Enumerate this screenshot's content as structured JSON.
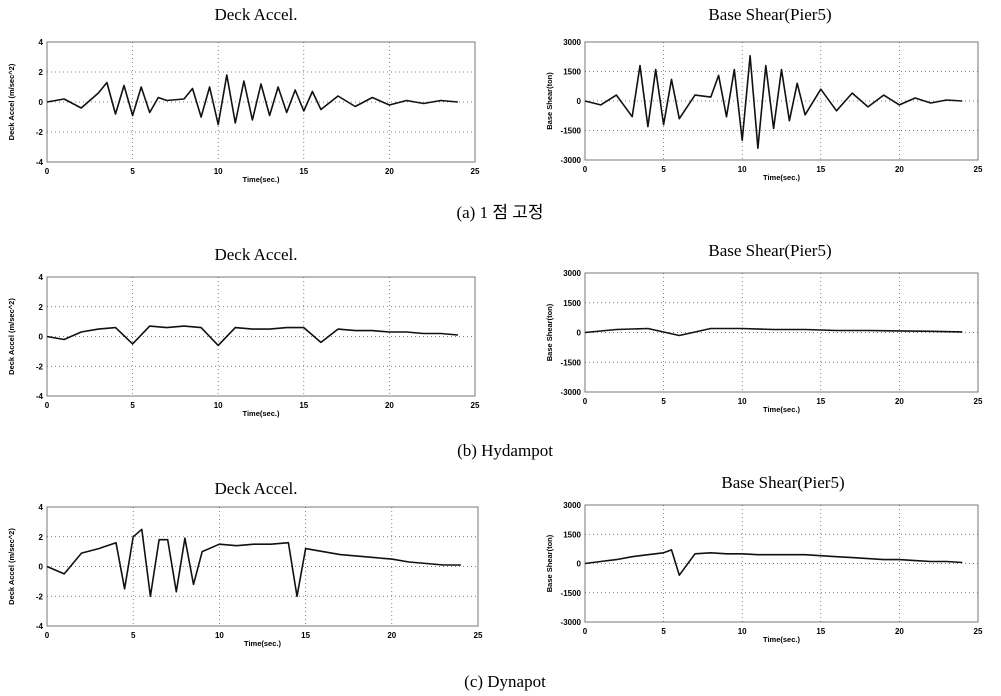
{
  "captions": [
    "(a) 1 점  고정",
    "(b) Hydampot",
    "(c) Dynapot"
  ],
  "chart_data": [
    {
      "id": "a-accel",
      "type": "line",
      "title": "Deck Accel.",
      "xlabel": "Time(sec.)",
      "ylabel": "Deck Accel (m/sec^2)",
      "xlim": [
        0,
        25
      ],
      "ylim": [
        -4,
        4
      ],
      "xticks": [
        "0",
        "5",
        "10",
        "15",
        "20",
        "25"
      ],
      "yticks": [
        "4",
        "2",
        "0",
        "-2",
        "-4"
      ],
      "grid": true,
      "series": [
        {
          "x": [
            0,
            1,
            2,
            3,
            3.5,
            4,
            4.5,
            5,
            5.5,
            6,
            6.5,
            7,
            8,
            8.5,
            9,
            9.5,
            10,
            10.5,
            11,
            11.5,
            12,
            12.5,
            13,
            13.5,
            14,
            14.5,
            15,
            15.5,
            16,
            17,
            18,
            19,
            20,
            21,
            22,
            23,
            24
          ],
          "y": [
            0,
            0.2,
            -0.4,
            0.6,
            1.3,
            -0.8,
            1.1,
            -0.9,
            1.0,
            -0.7,
            0.3,
            0.1,
            0.2,
            0.9,
            -1.0,
            1.0,
            -1.5,
            1.8,
            -1.4,
            1.4,
            -1.2,
            1.2,
            -0.9,
            1.0,
            -0.7,
            0.8,
            -0.6,
            0.7,
            -0.5,
            0.4,
            -0.3,
            0.3,
            -0.2,
            0.1,
            -0.1,
            0.1,
            0
          ]
        }
      ]
    },
    {
      "id": "a-shear",
      "type": "line",
      "title": "Base Shear(Pier5)",
      "xlabel": "Time(sec.)",
      "ylabel": "Base Shear(ton)",
      "xlim": [
        0,
        25
      ],
      "ylim": [
        -3000,
        3000
      ],
      "xticks": [
        "0",
        "5",
        "10",
        "15",
        "20",
        "25"
      ],
      "yticks": [
        "3000",
        "1500",
        "0",
        "-1500",
        "-3000"
      ],
      "grid": true,
      "series": [
        {
          "x": [
            0,
            1,
            2,
            3,
            3.5,
            4,
            4.5,
            5,
            5.5,
            6,
            7,
            8,
            8.5,
            9,
            9.5,
            10,
            10.5,
            11,
            11.5,
            12,
            12.5,
            13,
            13.5,
            14,
            15,
            16,
            17,
            18,
            19,
            20,
            21,
            22,
            23,
            24
          ],
          "y": [
            0,
            -200,
            300,
            -800,
            1800,
            -1300,
            1600,
            -1200,
            1100,
            -900,
            300,
            200,
            1300,
            -800,
            1600,
            -2000,
            2300,
            -2400,
            1800,
            -1400,
            1600,
            -1000,
            900,
            -700,
            600,
            -500,
            400,
            -300,
            300,
            -200,
            150,
            -100,
            50,
            0
          ]
        }
      ]
    },
    {
      "id": "b-accel",
      "type": "line",
      "title": "Deck Accel.",
      "xlabel": "Time(sec.)",
      "ylabel": "Deck Accel (m/sec^2)",
      "xlim": [
        0,
        25
      ],
      "ylim": [
        -4,
        4
      ],
      "xticks": [
        "0",
        "5",
        "10",
        "15",
        "20",
        "25"
      ],
      "yticks": [
        "4",
        "2",
        "0",
        "-2",
        "-4"
      ],
      "grid": true,
      "series": [
        {
          "x": [
            0,
            1,
            2,
            3,
            4,
            5,
            6,
            7,
            8,
            9,
            10,
            11,
            12,
            13,
            14,
            15,
            16,
            17,
            18,
            19,
            20,
            21,
            22,
            23,
            24
          ],
          "y": [
            0,
            -0.2,
            0.3,
            0.5,
            0.6,
            -0.5,
            0.7,
            0.6,
            0.7,
            0.6,
            -0.6,
            0.6,
            0.5,
            0.5,
            0.6,
            0.6,
            -0.4,
            0.5,
            0.4,
            0.4,
            0.3,
            0.3,
            0.2,
            0.2,
            0.1
          ]
        }
      ]
    },
    {
      "id": "b-shear",
      "type": "line",
      "title": "Base Shear(Pier5)",
      "xlabel": "Time(sec.)",
      "ylabel": "Base Shear(ton)",
      "xlim": [
        0,
        25
      ],
      "ylim": [
        -3000,
        3000
      ],
      "xticks": [
        "0",
        "5",
        "10",
        "15",
        "20",
        "25"
      ],
      "yticks": [
        "3000",
        "1500",
        "0",
        "-1500",
        "-3000"
      ],
      "grid": true,
      "series": [
        {
          "x": [
            0,
            2,
            4,
            6,
            8,
            10,
            12,
            14,
            16,
            18,
            20,
            22,
            24
          ],
          "y": [
            0,
            150,
            200,
            -150,
            200,
            200,
            150,
            150,
            100,
            100,
            80,
            60,
            30
          ]
        }
      ]
    },
    {
      "id": "c-accel",
      "type": "line",
      "title": "Deck Accel.",
      "xlabel": "Time(sec.)",
      "ylabel": "Deck Accel (m/sec^2)",
      "xlim": [
        0,
        25
      ],
      "ylim": [
        -4,
        4
      ],
      "xticks": [
        "0",
        "5",
        "10",
        "15",
        "20",
        "25"
      ],
      "yticks": [
        "4",
        "2",
        "0",
        "-2",
        "-4"
      ],
      "grid": true,
      "series": [
        {
          "x": [
            0,
            1,
            2,
            3,
            4,
            4.5,
            5,
            5.5,
            6,
            6.5,
            7,
            7.5,
            8,
            8.5,
            9,
            10,
            11,
            12,
            13,
            14,
            14.5,
            15,
            16,
            17,
            18,
            19,
            20,
            21,
            22,
            23,
            24
          ],
          "y": [
            0,
            -0.5,
            0.9,
            1.2,
            1.6,
            -1.5,
            2.0,
            2.5,
            -2.0,
            1.8,
            1.8,
            -1.7,
            1.9,
            -1.2,
            1.0,
            1.5,
            1.4,
            1.5,
            1.5,
            1.6,
            -2.0,
            1.2,
            1.0,
            0.8,
            0.7,
            0.6,
            0.5,
            0.3,
            0.2,
            0.1,
            0.1
          ]
        }
      ]
    },
    {
      "id": "c-shear",
      "type": "line",
      "title": "Base Shear(Pier5)",
      "xlabel": "Time(sec.)",
      "ylabel": "Base Shear(ton)",
      "xlim": [
        0,
        25
      ],
      "ylim": [
        -3000,
        3000
      ],
      "xticks": [
        "0",
        "5",
        "10",
        "15",
        "20",
        "25"
      ],
      "yticks": [
        "3000",
        "1500",
        "0",
        "-1500",
        "-3000"
      ],
      "grid": true,
      "series": [
        {
          "x": [
            0,
            1,
            2,
            3,
            4,
            5,
            5.5,
            6,
            7,
            8,
            9,
            10,
            11,
            12,
            13,
            14,
            15,
            16,
            17,
            18,
            19,
            20,
            21,
            22,
            23,
            24
          ],
          "y": [
            0,
            100,
            200,
            350,
            450,
            550,
            700,
            -600,
            500,
            550,
            500,
            500,
            450,
            450,
            450,
            450,
            400,
            350,
            300,
            250,
            200,
            200,
            150,
            100,
            100,
            50
          ]
        }
      ]
    }
  ]
}
